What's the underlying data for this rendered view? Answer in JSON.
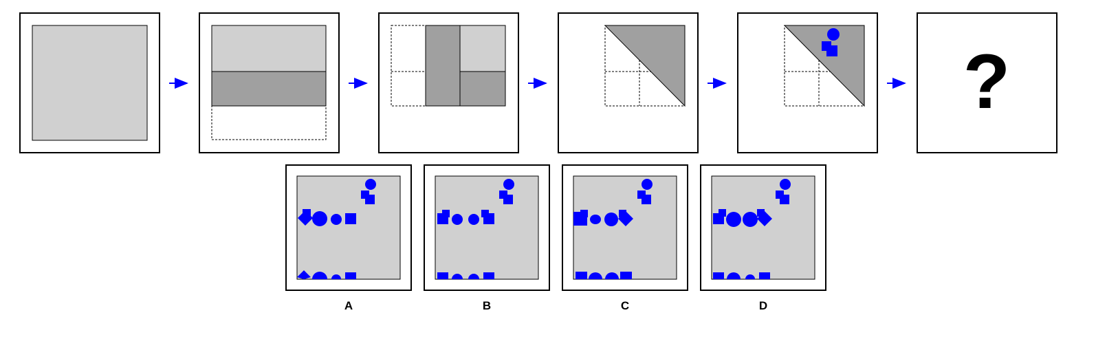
{
  "puzzle": {
    "type": "paper folding and hole punching",
    "question_mark": "?",
    "colors": {
      "paper": "#d0d0d0",
      "folded_layer": "#a0a0a0",
      "punch": "#0000ff",
      "arrow": "#0000ff",
      "frame": "#000000",
      "background": "#ffffff"
    },
    "steps": [
      {
        "name": "unfolded-sheet"
      },
      {
        "name": "fold-bottom-up"
      },
      {
        "name": "fold-left-to-right"
      },
      {
        "name": "diagonal-fold"
      },
      {
        "name": "punch-holes",
        "punches": [
          "circle",
          "square"
        ]
      },
      {
        "name": "answer-unknown"
      }
    ],
    "options": [
      {
        "label": "A",
        "top_row": [
          "diamond",
          "circle",
          "circle",
          "square"
        ],
        "bottom_row": [
          "diamond",
          "circle",
          "circle",
          "square"
        ]
      },
      {
        "label": "B",
        "top_row": [
          "square",
          "circle",
          "circle",
          "square"
        ],
        "bottom_row": [
          "square",
          "circle",
          "circle",
          "square"
        ]
      },
      {
        "label": "C",
        "top_row": [
          "square",
          "circle",
          "circle",
          "diamond"
        ],
        "bottom_row": [
          "square",
          "circle",
          "circle",
          "square"
        ]
      },
      {
        "label": "D",
        "top_row": [
          "square",
          "circle",
          "circle",
          "diamond"
        ],
        "bottom_row": [
          "square",
          "circle",
          "circle",
          "square"
        ]
      }
    ]
  }
}
